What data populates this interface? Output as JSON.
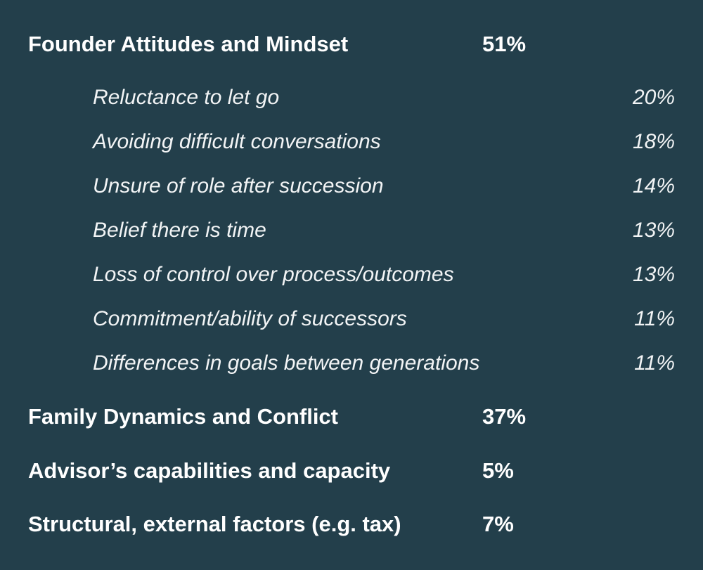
{
  "chart_data": {
    "type": "table",
    "categories": [
      {
        "label": "Founder Attitudes and Mindset",
        "value": "51%",
        "items": [
          {
            "label": "Reluctance to let go",
            "value": "20%"
          },
          {
            "label": "Avoiding difficult conversations",
            "value": "18%"
          },
          {
            "label": "Unsure of role after succession",
            "value": "14%"
          },
          {
            "label": "Belief there is time",
            "value": "13%"
          },
          {
            "label": "Loss of control over process/outcomes",
            "value": "13%"
          },
          {
            "label": "Commitment/ability of successors",
            "value": "11%"
          },
          {
            "label": "Differences in goals between generations",
            "value": "11%"
          }
        ]
      },
      {
        "label": "Family Dynamics and Conflict",
        "value": "37%",
        "items": []
      },
      {
        "label": "Advisor’s capabilities and capacity",
        "value": "5%",
        "items": []
      },
      {
        "label": "Structural, external factors (e.g. tax)",
        "value": "7%",
        "items": []
      }
    ]
  },
  "colors": {
    "background": "#233f4b",
    "text": "#ffffff"
  }
}
